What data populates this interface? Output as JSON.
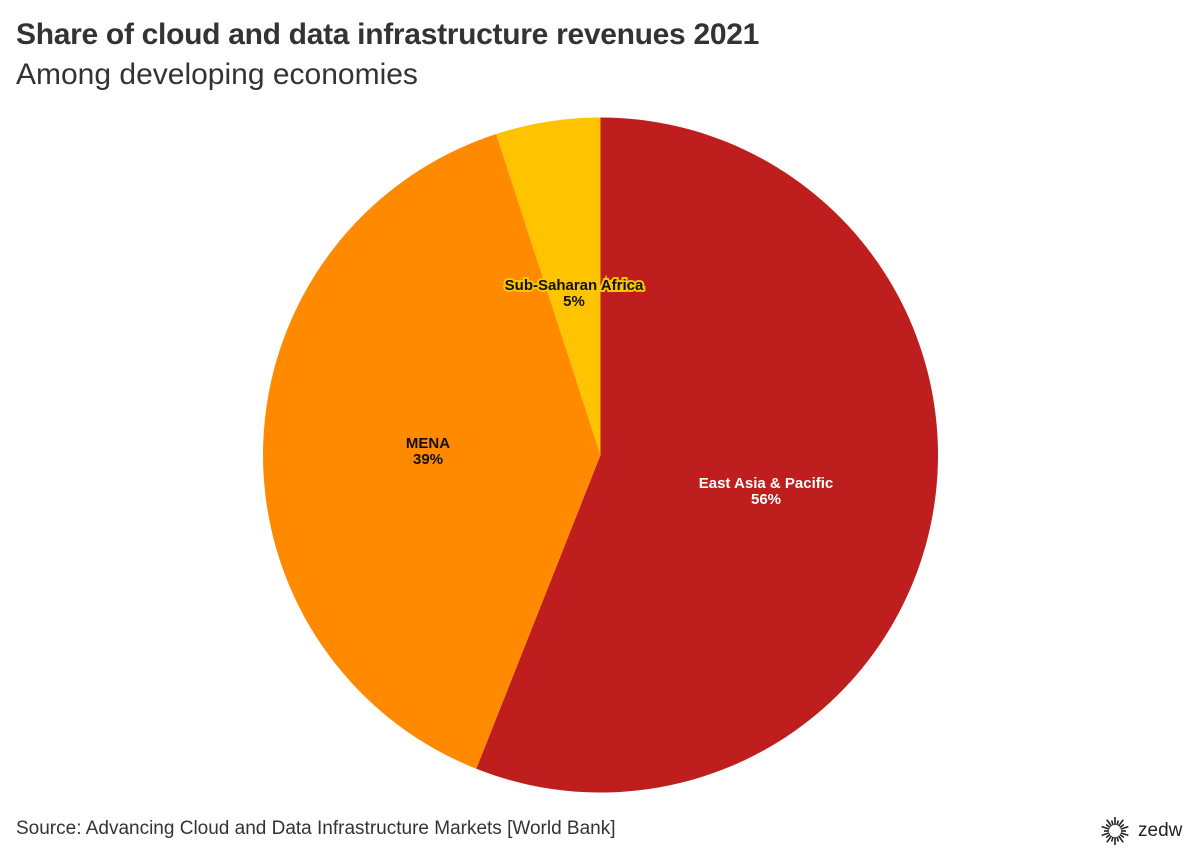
{
  "title": "Share of cloud and data infrastructure revenues 2021",
  "subtitle": "Among developing economies",
  "source": "Source: Advancing Cloud and Data Infrastructure Markets [World Bank]",
  "logo": {
    "text": "zedw",
    "icon": "sunburst-icon"
  },
  "chart_data": {
    "type": "pie",
    "title": "Share of cloud and data infrastructure revenues 2021",
    "subtitle": "Among developing economies",
    "start": "top, clockwise",
    "slices": [
      {
        "label": "East Asia & Pacific",
        "value": 56,
        "value_label": "56%",
        "color": "#be1e1e",
        "text_color": "#ffffff",
        "halo": "#be1e1e"
      },
      {
        "label": "MENA",
        "value": 39,
        "value_label": "39%",
        "color": "#ff8a00",
        "text_color": "#111111",
        "halo": "#ff8a00"
      },
      {
        "label": "Sub-Saharan Africa",
        "value": 5,
        "value_label": "5%",
        "color": "#ffc300",
        "text_color": "#111111",
        "halo": "#ffc300"
      }
    ]
  }
}
